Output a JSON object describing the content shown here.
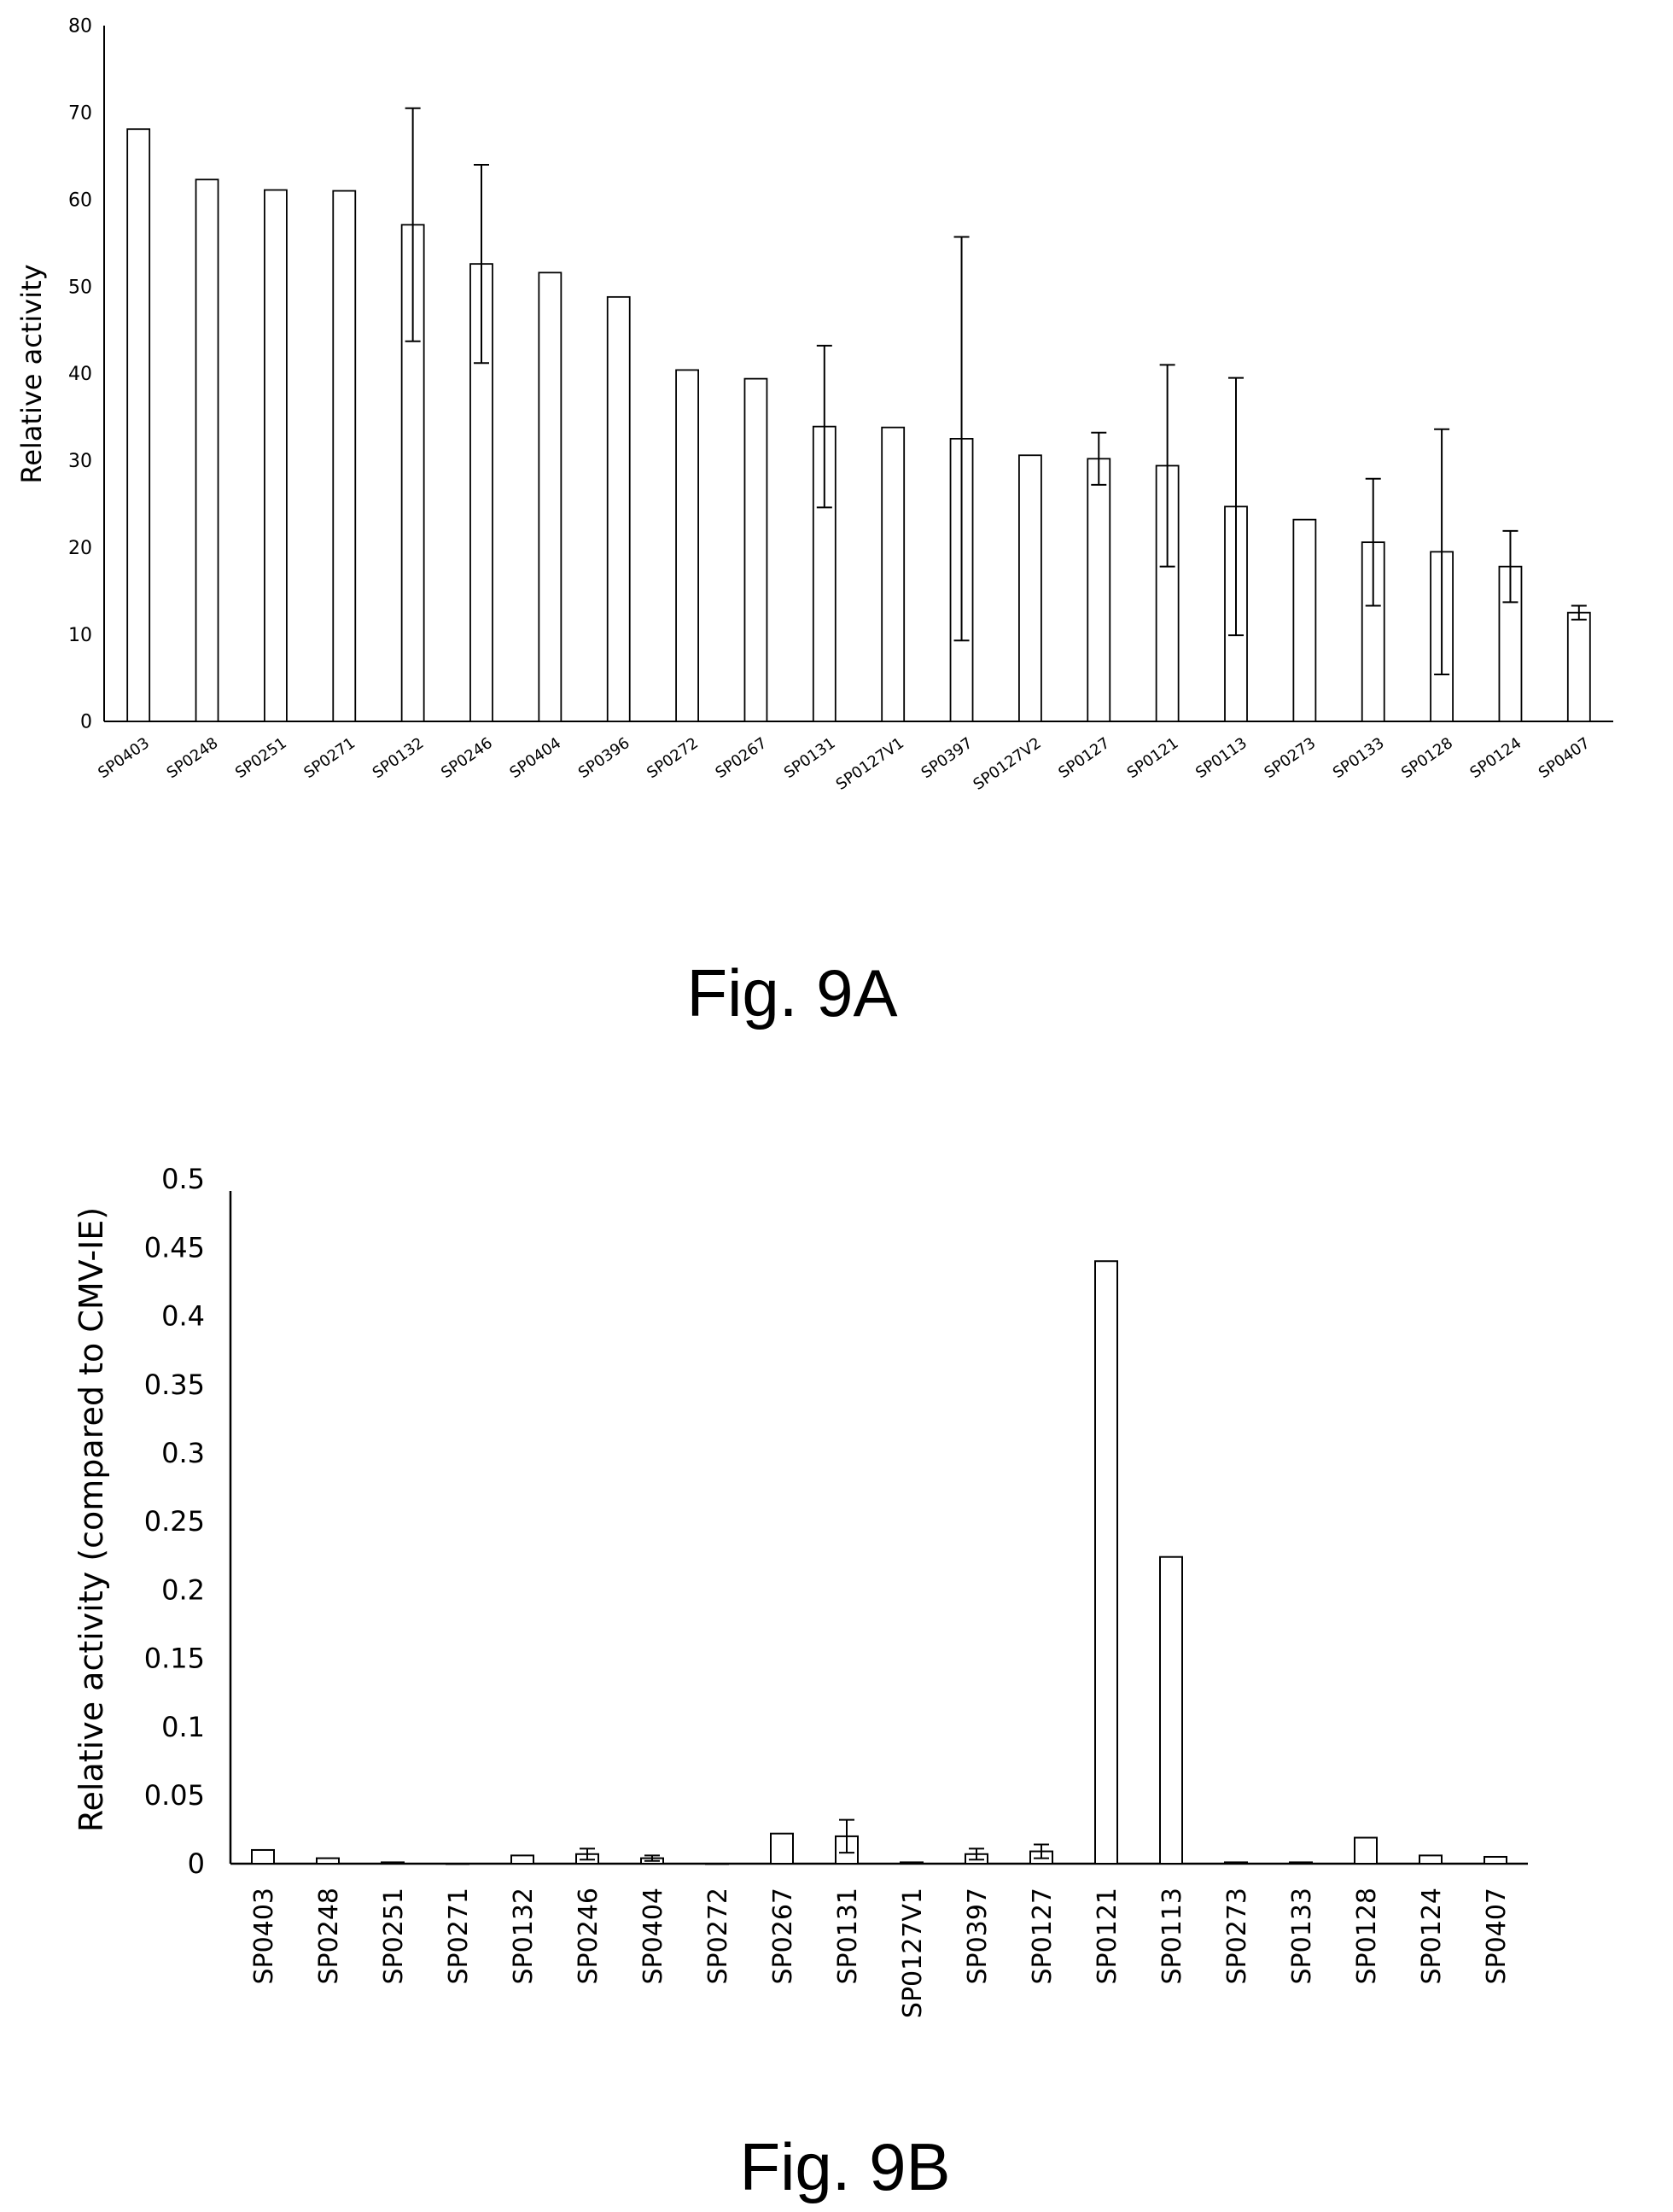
{
  "chart_data": [
    {
      "type": "bar",
      "caption": "Fig. 9A",
      "title": "",
      "xlabel": "",
      "ylabel": "Relative activity",
      "ylim": [
        0,
        80
      ],
      "yticks": [
        0,
        10,
        20,
        30,
        40,
        50,
        60,
        70,
        80
      ],
      "grid": false,
      "legend": "none",
      "categories": [
        "SP0403",
        "SP0248",
        "SP0251",
        "SP0271",
        "SP0132",
        "SP0246",
        "SP0404",
        "SP0396",
        "SP0272",
        "SP0267",
        "SP0131",
        "SP0127V1",
        "SP0397",
        "SP0127V2",
        "SP0127",
        "SP0121",
        "SP0113",
        "SP0273",
        "SP0133",
        "SP0128",
        "SP0124",
        "SP0407"
      ],
      "values": [
        68.1,
        62.3,
        61.1,
        61.0,
        57.1,
        52.6,
        51.6,
        48.8,
        40.4,
        39.4,
        33.9,
        33.8,
        32.5,
        30.6,
        30.2,
        29.4,
        24.7,
        23.2,
        20.6,
        19.5,
        17.8,
        12.5
      ],
      "errors": [
        0,
        0,
        0,
        0,
        13.4,
        11.4,
        0,
        0,
        0,
        0,
        9.3,
        0,
        23.2,
        0,
        3.0,
        11.6,
        14.8,
        0,
        7.3,
        14.1,
        4.1,
        0.8
      ]
    },
    {
      "type": "bar",
      "caption": "Fig. 9B",
      "title": "",
      "xlabel": "",
      "ylabel": "Relative activity (compared to CMV-IE)",
      "ylim": [
        0,
        0.5
      ],
      "yticks": [
        "0",
        "0.05",
        "0.1",
        "0.15",
        "0.2",
        "0.25",
        "0.3",
        "0.35",
        "0.4",
        "0.45",
        "0.5"
      ],
      "grid": false,
      "legend": "none",
      "categories": [
        "SP0403",
        "SP0248",
        "SP0251",
        "SP0271",
        "SP0132",
        "SP0246",
        "SP0404",
        "SP0272",
        "SP0267",
        "SP0131",
        "SP0127V1",
        "SP0397",
        "SP0127",
        "SP0121",
        "SP0113",
        "SP0273",
        "SP0133",
        "SP0128",
        "SP0124",
        "SP0407"
      ],
      "values": [
        0.01,
        0.004,
        0.001,
        0.0,
        0.006,
        0.007,
        0.004,
        0.0,
        0.022,
        0.02,
        0.001,
        0.007,
        0.009,
        0.44,
        0.224,
        0.001,
        0.001,
        0.019,
        0.006,
        0.005
      ],
      "errors": [
        0,
        0,
        0,
        0,
        0,
        0.004,
        0.002,
        0,
        0,
        0.012,
        0,
        0.004,
        0.005,
        0,
        0,
        0,
        0,
        0,
        0,
        0
      ]
    }
  ]
}
